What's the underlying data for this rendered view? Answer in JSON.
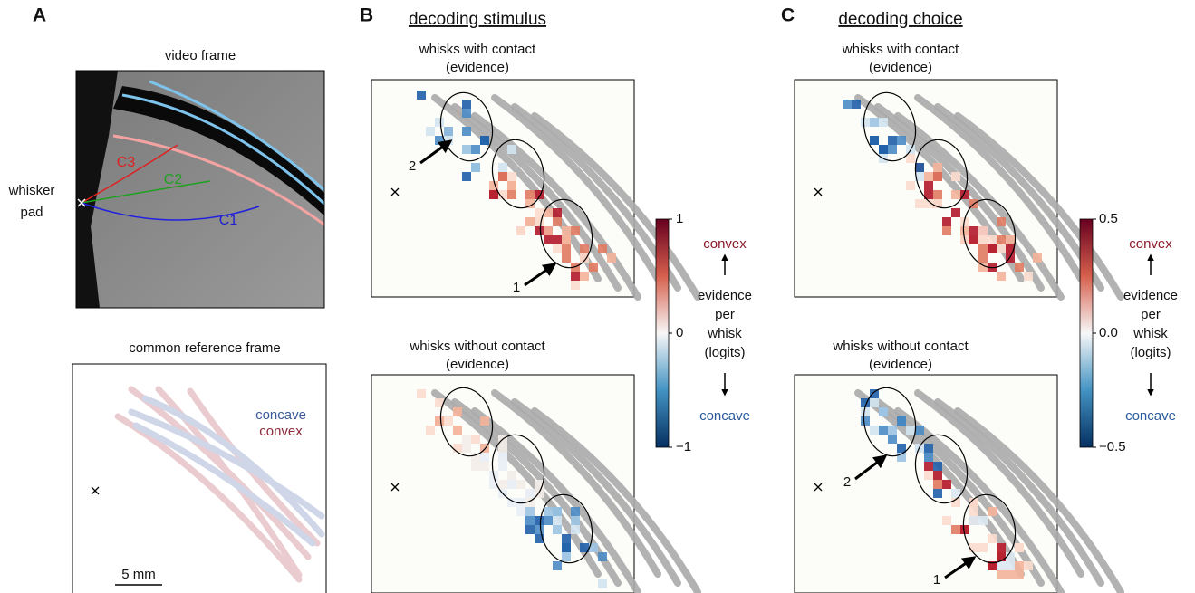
{
  "panel_a": {
    "label": "A",
    "video_frame": {
      "title": "video frame",
      "side_label": [
        "whisker",
        "pad"
      ],
      "whiskers": [
        "C3",
        "C2",
        "C1"
      ]
    },
    "reference_frame": {
      "title": "common reference frame",
      "legend": [
        "concave",
        "convex"
      ],
      "scale_bar": "5 mm"
    }
  },
  "panel_b": {
    "label": "B",
    "heading": "decoding stimulus",
    "top": {
      "title": [
        "whisks with contact",
        "(evidence)"
      ],
      "arrows": [
        "2",
        "1"
      ]
    },
    "bottom": {
      "title": [
        "whisks without contact",
        "(evidence)"
      ]
    },
    "colorbar": {
      "ticks": [
        "1",
        "0",
        "−1"
      ],
      "top_label": "convex",
      "middle_label": [
        "evidence",
        "per",
        "whisk",
        "(logits)"
      ],
      "bottom_label": "concave"
    }
  },
  "panel_c": {
    "label": "C",
    "heading": "decoding choice",
    "top": {
      "title": [
        "whisks with contact",
        "(evidence)"
      ]
    },
    "bottom": {
      "title": [
        "whisks without contact",
        "(evidence)"
      ],
      "arrows": [
        "2",
        "1"
      ]
    },
    "colorbar": {
      "ticks": [
        "0.5",
        "0.0",
        "−0.5"
      ],
      "top_label": "convex",
      "middle_label": [
        "evidence",
        "per",
        "whisk",
        "(logits)"
      ],
      "bottom_label": "concave"
    }
  }
}
